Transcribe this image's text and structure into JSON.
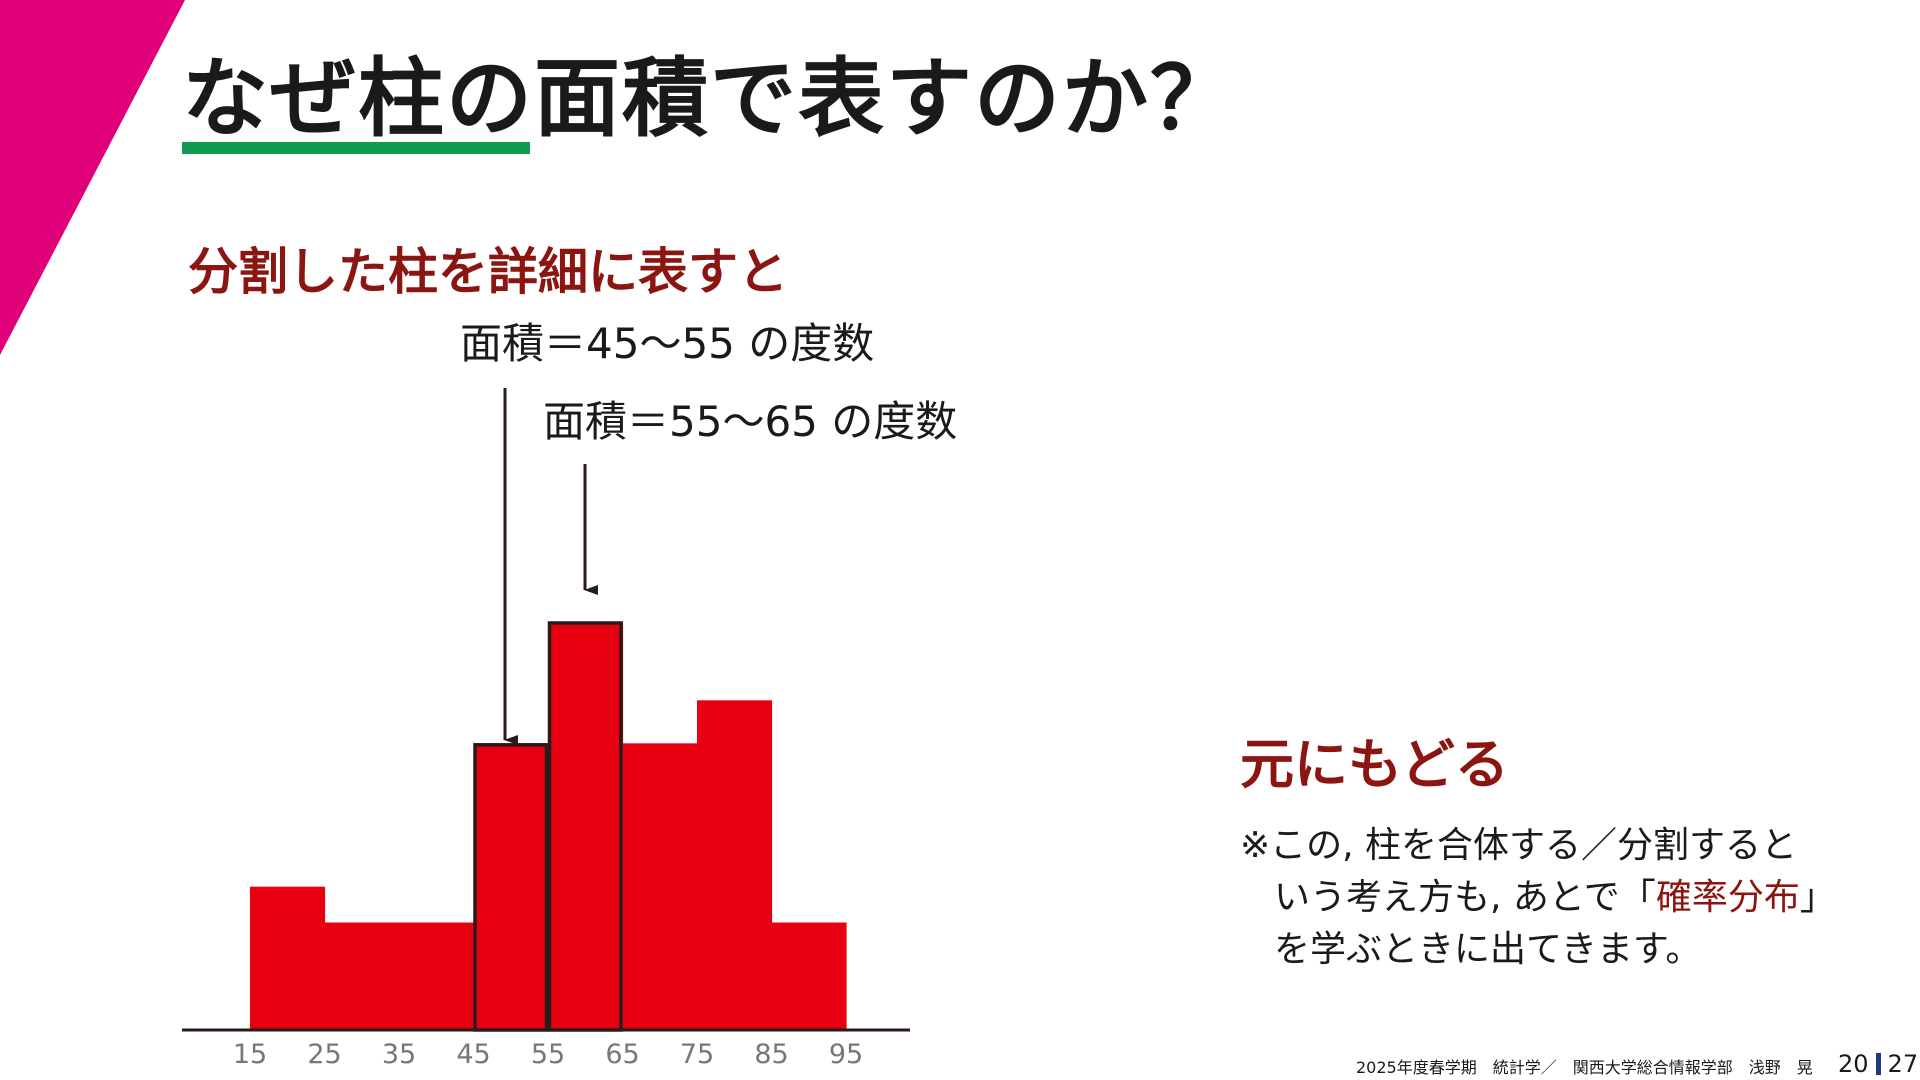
{
  "slide": {
    "title": "なぜ柱の面積で表すのか？",
    "accent_color": "#e0007a",
    "underline_color": "#0f9a4e"
  },
  "section_heading": "分割した柱を詳細に表すと",
  "annotations": [
    {
      "text": "面積＝45～55 の度数",
      "points_to_bin": 3
    },
    {
      "text": "面積＝55～65 の度数",
      "points_to_bin": 4
    }
  ],
  "chart_data": {
    "type": "bar",
    "title": "",
    "xlabel": "",
    "ylabel": "",
    "x_ticks": [
      15,
      25,
      35,
      45,
      55,
      65,
      75,
      85,
      95
    ],
    "bins": [
      {
        "from": 15,
        "to": 25,
        "value": 4
      },
      {
        "from": 25,
        "to": 35,
        "value": 3
      },
      {
        "from": 35,
        "to": 45,
        "value": 3
      },
      {
        "from": 45,
        "to": 55,
        "value": 8
      },
      {
        "from": 55,
        "to": 65,
        "value": 11.4
      },
      {
        "from": 65,
        "to": 75,
        "value": 8
      },
      {
        "from": 75,
        "to": 85,
        "value": 9.2
      },
      {
        "from": 85,
        "to": 95,
        "value": 3
      }
    ],
    "ylim": [
      0,
      12
    ],
    "bar_color": "#e60012",
    "outline_color": "#2b1a1a",
    "highlighted_bins": [
      3,
      4
    ],
    "grid": false
  },
  "side": {
    "heading": "元にもどる",
    "note_line1": "※この, 柱を合体する／分割すると",
    "note_line2_before": "いう考え方も, あとで「",
    "note_line2_highlight": "確率分布",
    "note_line2_after": "」",
    "note_line3": "を学ぶときに出てきます。"
  },
  "footer": {
    "text": "2025年度春学期　統計学／　関西大学総合情報学部　浅野　晃",
    "page_current": "20",
    "page_total": "27"
  }
}
